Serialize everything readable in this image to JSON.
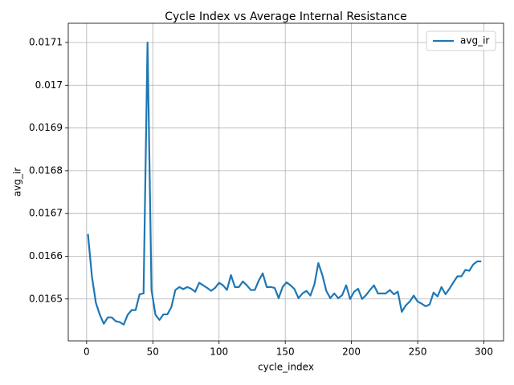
{
  "chart_data": {
    "type": "line",
    "title": "Cycle Index vs Average Internal Resistance",
    "x_label": "cycle_index",
    "y_label": "avg_ir",
    "x": [
      1,
      4,
      7,
      10,
      13,
      16,
      19,
      22,
      25,
      28,
      31,
      34,
      37,
      40,
      43,
      46,
      49,
      52,
      55,
      58,
      61,
      64,
      67,
      70,
      73,
      76,
      79,
      82,
      85,
      88,
      91,
      94,
      97,
      100,
      103,
      106,
      109,
      112,
      115,
      118,
      121,
      124,
      127,
      130,
      133,
      136,
      139,
      142,
      145,
      148,
      151,
      154,
      157,
      160,
      163,
      166,
      169,
      172,
      175,
      178,
      181,
      184,
      187,
      190,
      193,
      196,
      199,
      202,
      205,
      208,
      211,
      214,
      217,
      220,
      223,
      226,
      229,
      232,
      235,
      238,
      241,
      244,
      247,
      250,
      253,
      256,
      259,
      262,
      265,
      268,
      271,
      274,
      277,
      280,
      283,
      286,
      289,
      292,
      295,
      298
    ],
    "series": [
      {
        "name": "avg_ir",
        "color": "#1f77b4",
        "values": [
          0.016652,
          0.016553,
          0.016491,
          0.016463,
          0.016442,
          0.016457,
          0.016457,
          0.016448,
          0.016446,
          0.01644,
          0.016463,
          0.016474,
          0.016474,
          0.016511,
          0.016513,
          0.0171,
          0.016521,
          0.016463,
          0.016451,
          0.016464,
          0.016464,
          0.016481,
          0.016521,
          0.016528,
          0.016523,
          0.016528,
          0.016524,
          0.016517,
          0.016538,
          0.016532,
          0.016526,
          0.016519,
          0.016526,
          0.016538,
          0.016532,
          0.016521,
          0.016556,
          0.016528,
          0.016528,
          0.016541,
          0.016532,
          0.016521,
          0.016521,
          0.016543,
          0.01656,
          0.016528,
          0.016528,
          0.016526,
          0.016502,
          0.016528,
          0.016539,
          0.016532,
          0.016523,
          0.016502,
          0.016513,
          0.016519,
          0.016508,
          0.016534,
          0.016584,
          0.016556,
          0.016519,
          0.016502,
          0.016513,
          0.016502,
          0.016509,
          0.016532,
          0.0165,
          0.016517,
          0.016524,
          0.0165,
          0.016509,
          0.016521,
          0.016532,
          0.016513,
          0.016513,
          0.016513,
          0.016521,
          0.016511,
          0.016517,
          0.01647,
          0.016485,
          0.016494,
          0.016508,
          0.016494,
          0.016489,
          0.016483,
          0.016487,
          0.016515,
          0.016506,
          0.016528,
          0.016511,
          0.016524,
          0.016539,
          0.016553,
          0.016553,
          0.016568,
          0.016566,
          0.016581,
          0.016588,
          0.016588
        ]
      }
    ],
    "xlim": [
      -13.85,
      314.85
    ],
    "ylim": [
      0.016402,
      0.017145
    ],
    "xticks": [
      0,
      50,
      100,
      150,
      200,
      250,
      300
    ],
    "yticks": [
      0.0165,
      0.0166,
      0.0167,
      0.0168,
      0.0169,
      0.017,
      {
        "value": 0.0171,
        "label": "0.0171"
      }
    ],
    "grid": true,
    "legend": "upper right"
  }
}
